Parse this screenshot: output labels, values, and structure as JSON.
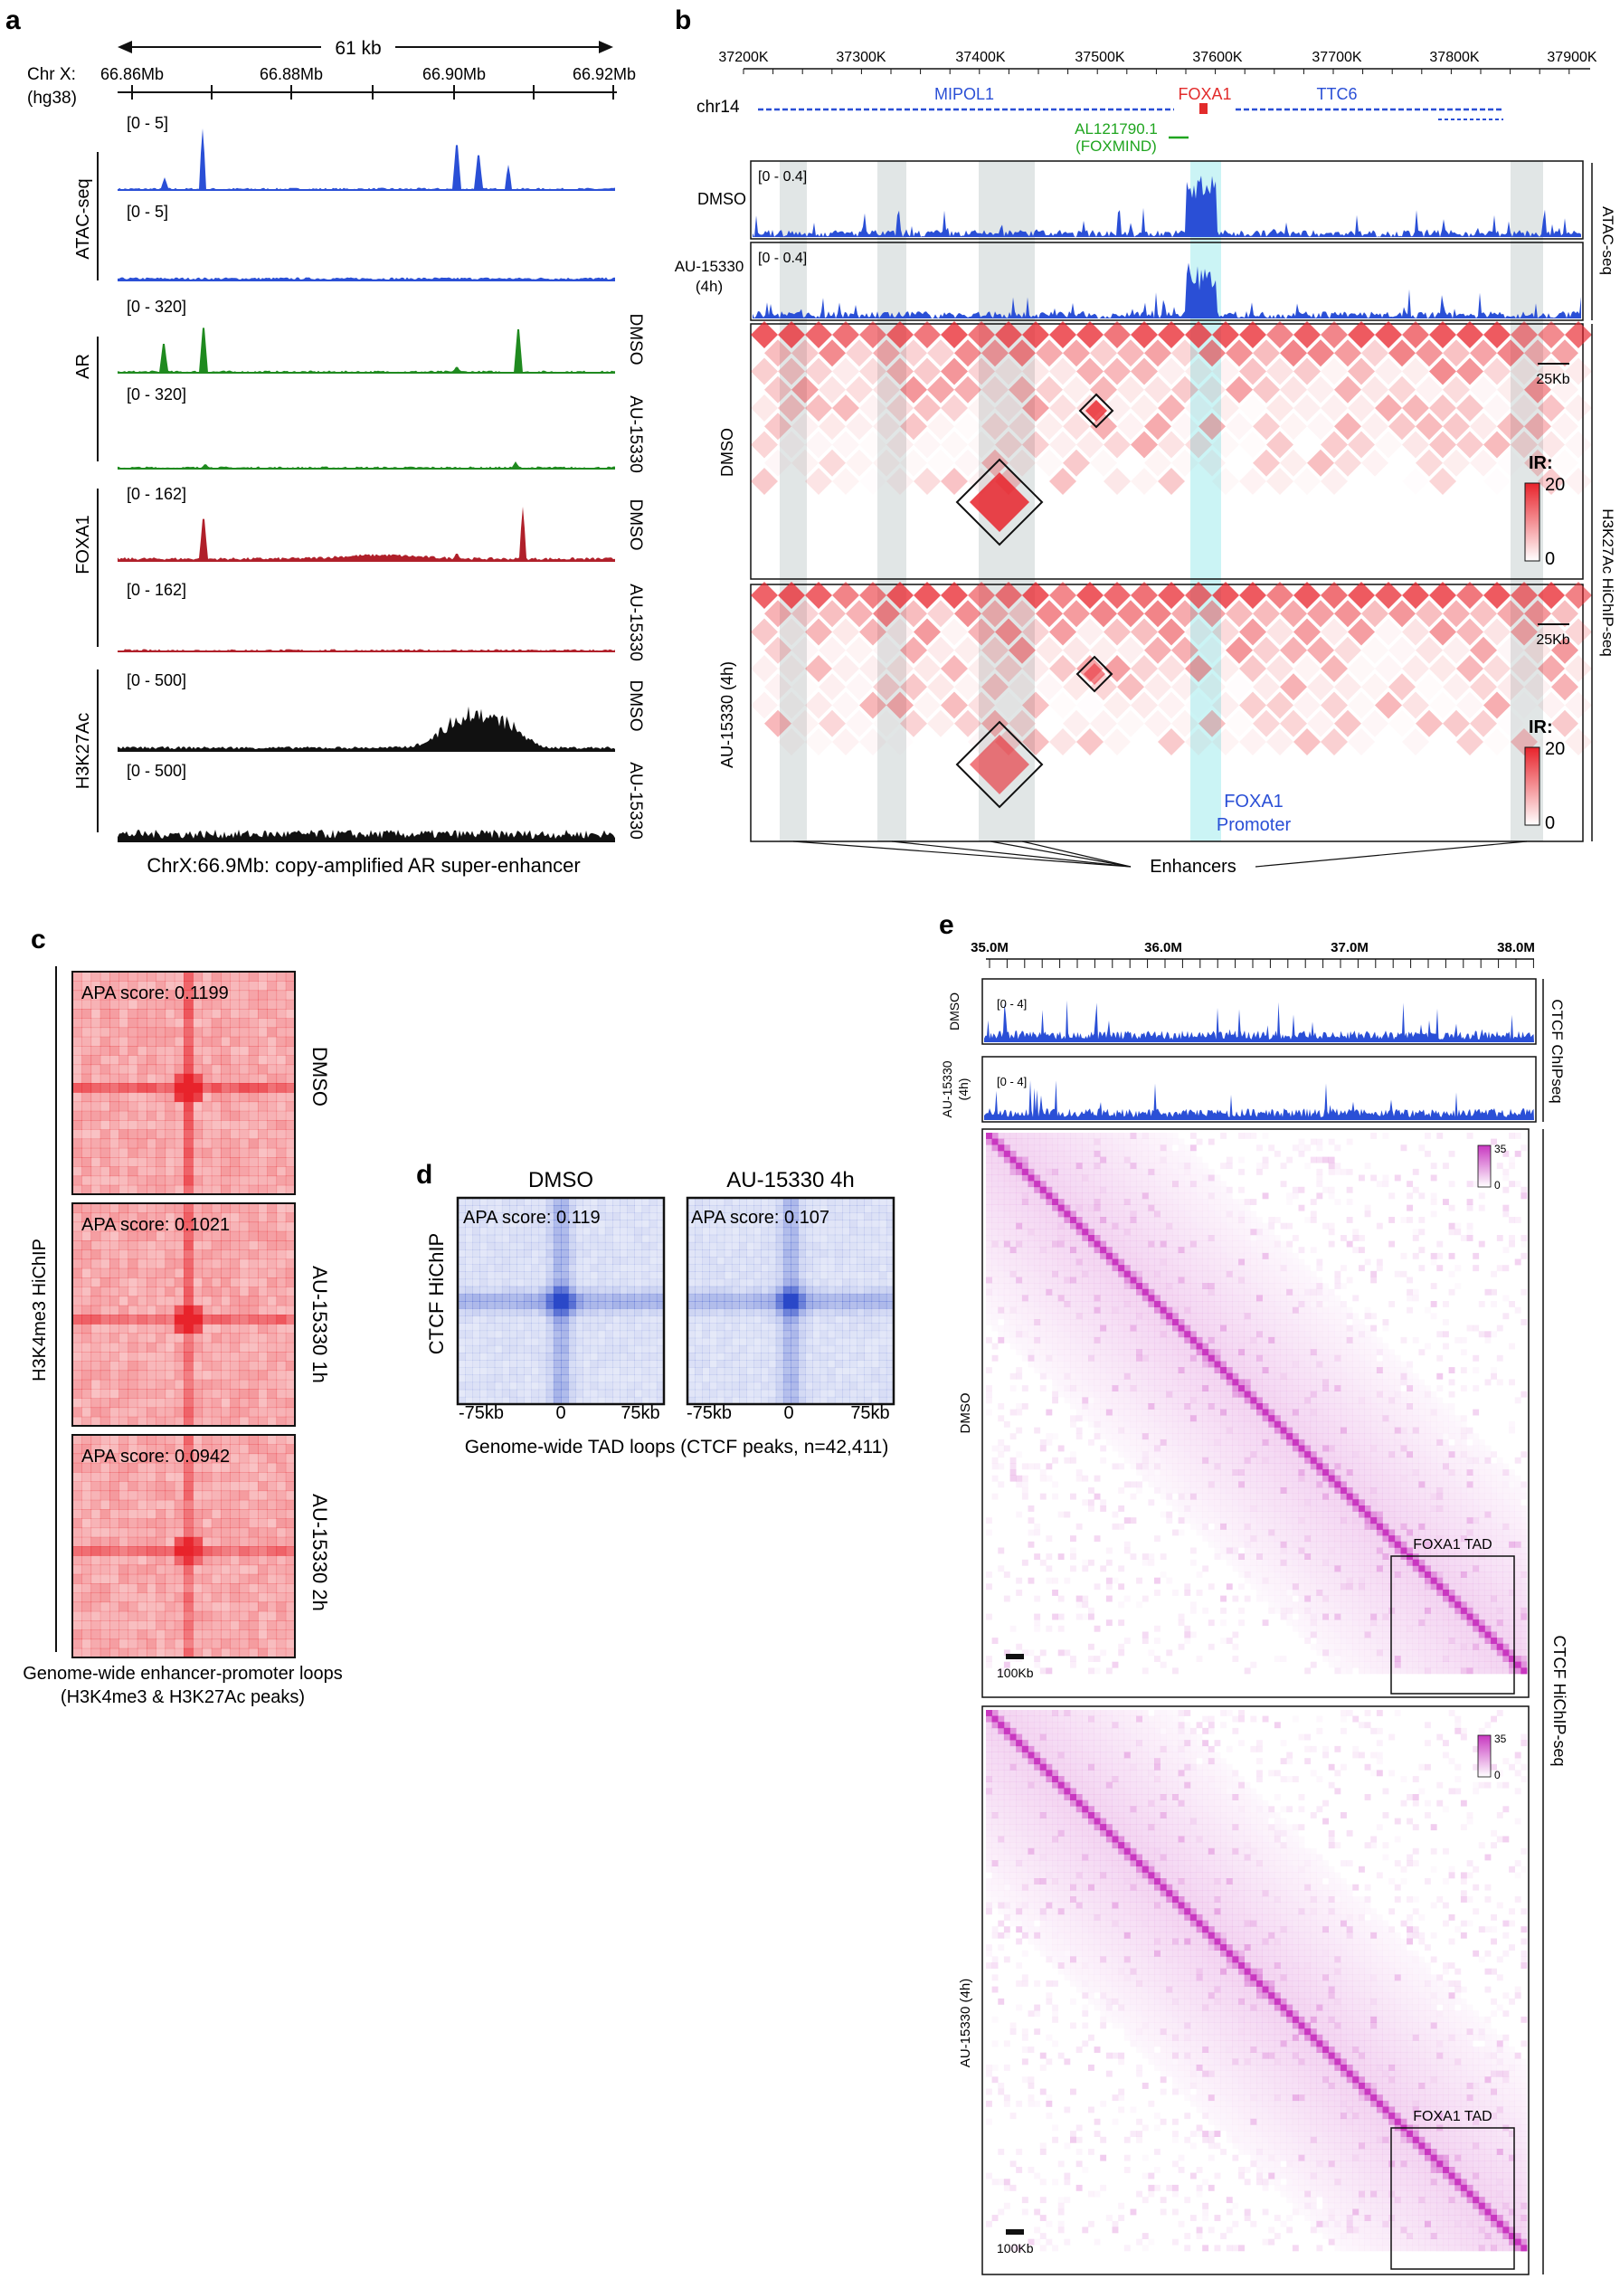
{
  "colors": {
    "atac": "#2a4fd6",
    "ar": "#1f8a1f",
    "foxa1": "#b0202a",
    "h3k27ac": "#111111",
    "hic_red": "#e8232b",
    "ctcf_purple": "#c837c0",
    "apa_blue": "#2a48c8",
    "shade_gray": "#c9d2d2",
    "shade_cyan": "#a9ecef"
  },
  "panel_labels": {
    "a": "a",
    "b": "b",
    "c": "c",
    "d": "d",
    "e": "e"
  },
  "panel_a": {
    "scale_label": "61 kb",
    "chrom_label": "Chr X:",
    "assembly_label": "(hg38)",
    "ticks": [
      "66.86Mb",
      "66.88Mb",
      "66.90Mb",
      "66.92Mb"
    ],
    "groups": [
      "ATAC-seq",
      "AR",
      "FOXA1",
      "H3K27Ac"
    ],
    "conditions": [
      "DMSO",
      "AU-15330"
    ],
    "tracks": [
      {
        "range": "[0 - 5]",
        "color_key": "atac",
        "condition": ""
      },
      {
        "range": "[0 - 5]",
        "color_key": "atac",
        "condition": ""
      },
      {
        "range": "[0 - 320]",
        "color_key": "ar",
        "condition": "DMSO"
      },
      {
        "range": "[0 - 320]",
        "color_key": "ar",
        "condition": "AU-15330"
      },
      {
        "range": "[0 - 162]",
        "color_key": "foxa1",
        "condition": "DMSO"
      },
      {
        "range": "[0 - 162]",
        "color_key": "foxa1",
        "condition": "AU-15330"
      },
      {
        "range": "[0 - 500]",
        "color_key": "h3k27ac",
        "condition": "DMSO"
      },
      {
        "range": "[0 - 500]",
        "color_key": "h3k27ac",
        "condition": "AU-15330"
      }
    ],
    "caption": "ChrX:66.9Mb: copy-amplified AR super-enhancer"
  },
  "panel_b": {
    "ticks": [
      "37200K",
      "37300K",
      "37400K",
      "37500K",
      "37600K",
      "37700K",
      "37800K",
      "37900K"
    ],
    "chrom": "chr14",
    "genes": {
      "mipol1": "MIPOL1",
      "foxa1": "FOXA1",
      "ttc6": "TTC6",
      "lnc1": "AL121790.1",
      "lnc2": "(FOXMIND)"
    },
    "track_labels": {
      "dmso": "DMSO",
      "au_line1": "AU-15330",
      "au_line2": "(4h)"
    },
    "track_range": "[0 - 0.4]",
    "atac_label": "ATAC-seq",
    "hichip_label": "H3K27Ac HiChIP-seq",
    "map_labels": {
      "dmso": "DMSO",
      "au": "AU-15330 (4h)"
    },
    "scalebar": "25Kb",
    "ir_label": "IR:",
    "ir_max": "20",
    "ir_min": "0",
    "promoter_line1": "FOXA1",
    "promoter_line2": "Promoter",
    "enhancers_label": "Enhancers"
  },
  "panel_c": {
    "side_label": "H3K4me3 HiChIP",
    "maps": [
      {
        "score": "APA score: 0.1199",
        "condition": "DMSO",
        "intensity": 1.0
      },
      {
        "score": "APA score: 0.1021",
        "condition": "AU-15330 1h",
        "intensity": 0.85
      },
      {
        "score": "APA score: 0.0942",
        "condition": "AU-15330 2h",
        "intensity": 0.75
      }
    ],
    "caption_line1": "Genome-wide enhancer-promoter loops",
    "caption_line2": "(H3K4me3 & H3K27Ac peaks)"
  },
  "panel_d": {
    "titles": [
      "DMSO",
      "AU-15330 4h"
    ],
    "scores": [
      "APA score: 0.119",
      "APA score: 0.107"
    ],
    "ylabel": "CTCF HiChIP",
    "xticks": [
      "-75kb",
      "0",
      "75kb"
    ],
    "caption": "Genome-wide TAD loops (CTCF peaks, n=42,411)"
  },
  "panel_e": {
    "ticks": [
      "35.0M",
      "36.0M",
      "37.0M",
      "38.0M"
    ],
    "track_labels": {
      "dmso": "DMSO",
      "au_line1": "AU-15330",
      "au_line2": "(4h)"
    },
    "track_range": "[0 - 4]",
    "chip_label": "CTCF ChIPseq",
    "hichip_label": "CTCF HiChIP-seq",
    "map_labels": {
      "dmso": "DMSO",
      "au": "AU-15330 (4h)"
    },
    "legend_max": "35",
    "legend_min": "0",
    "tad_label": "FOXA1 TAD",
    "scalebar": "100Kb"
  }
}
